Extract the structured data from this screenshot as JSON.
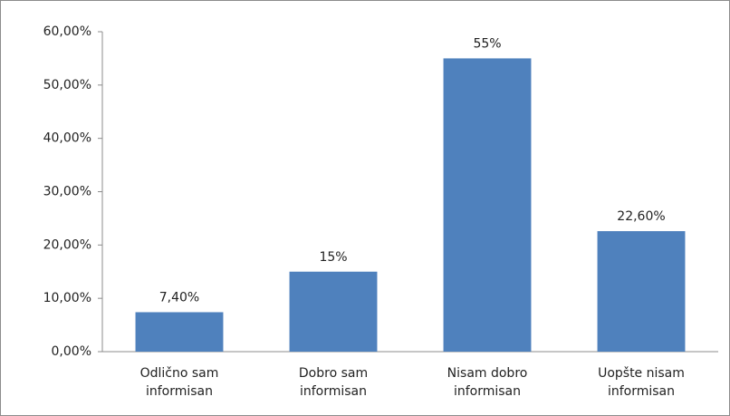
{
  "chart_data": {
    "type": "bar",
    "categories": [
      "Odlično sam informisan",
      "Dobro sam informisan",
      "Nisam dobro informisan",
      "Uopšte nisam informisan"
    ],
    "values": [
      7.4,
      15,
      55,
      22.6
    ],
    "value_labels": [
      "7,40%",
      "15%",
      "55%",
      "22,60%"
    ],
    "color": "#4f81bd",
    "ylim": [
      0,
      60
    ],
    "yticks": [
      {
        "value": 0,
        "label": "0,00%"
      },
      {
        "value": 10,
        "label": "10,00%"
      },
      {
        "value": 20,
        "label": "20,00%"
      },
      {
        "value": 30,
        "label": "30,00%"
      },
      {
        "value": 40,
        "label": "40,00%"
      },
      {
        "value": 50,
        "label": "50,00%"
      },
      {
        "value": 60,
        "label": "60,00%"
      }
    ],
    "grid": false
  }
}
